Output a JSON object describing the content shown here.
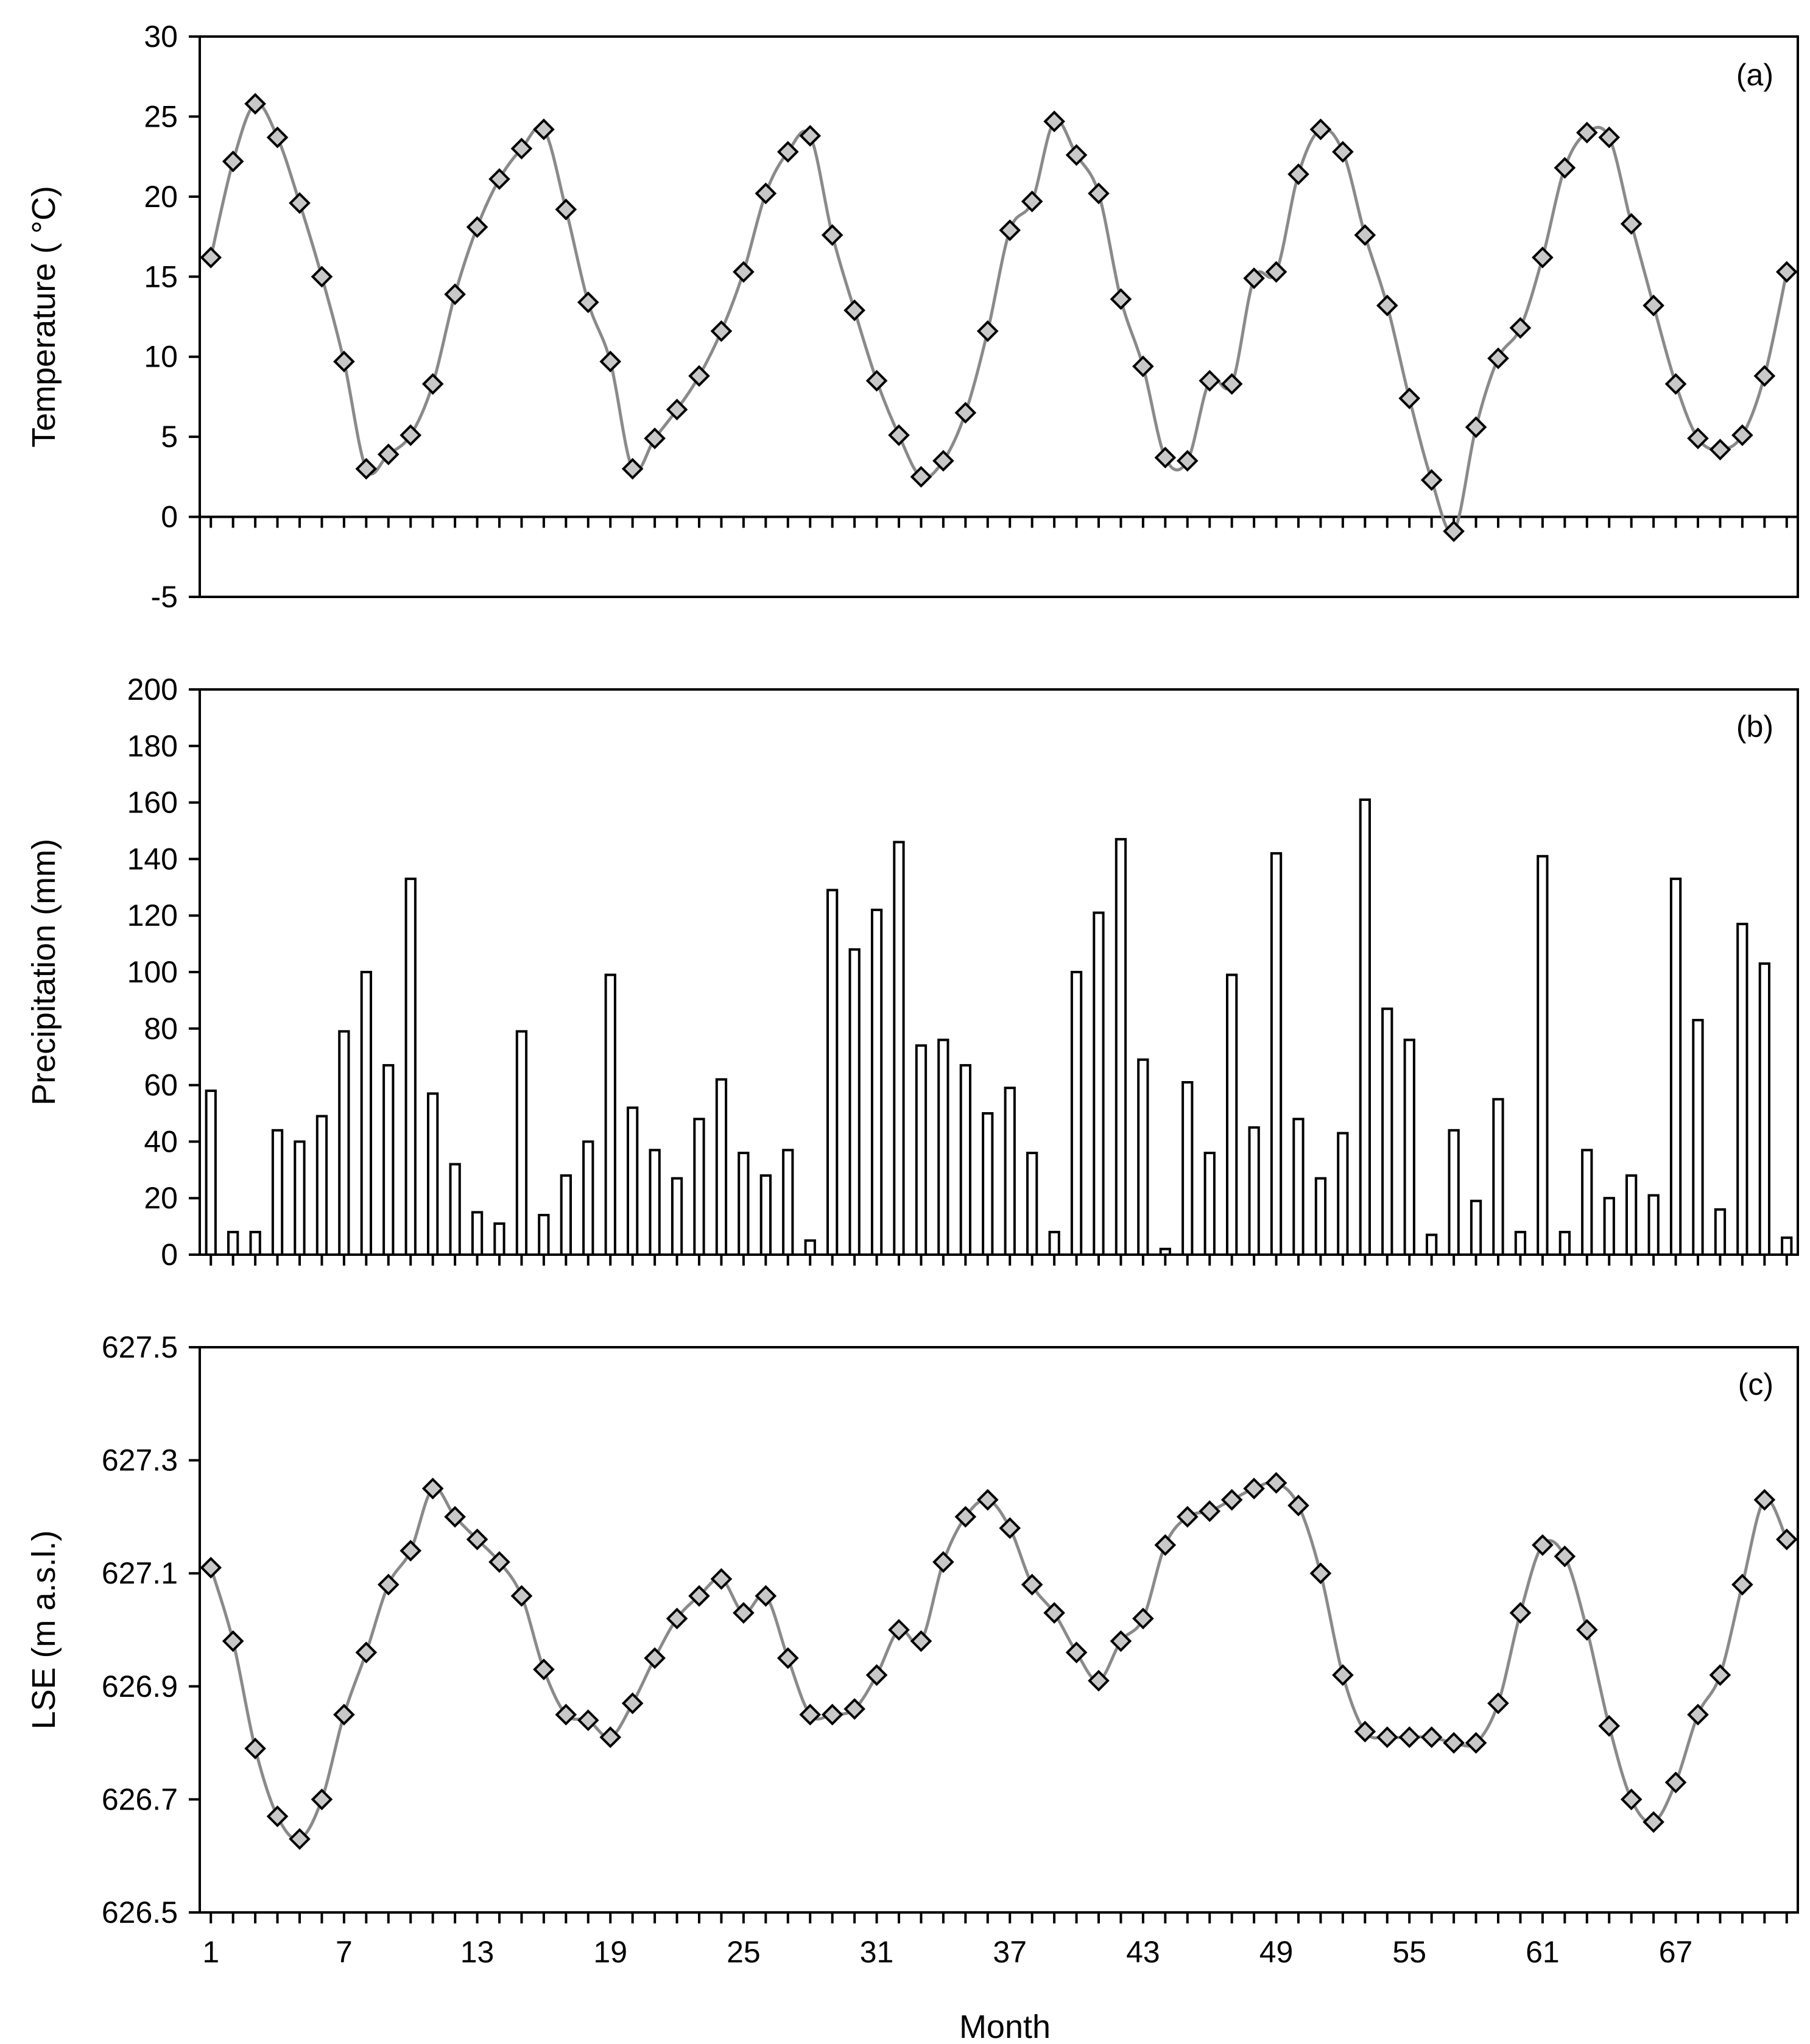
{
  "chart_data": [
    {
      "id": "a",
      "type": "line",
      "panel_label": "(a)",
      "ylabel": "Temperature ( °C)",
      "ylim": [
        -5,
        30
      ],
      "yticks": [
        -5,
        0,
        5,
        10,
        15,
        20,
        25,
        30
      ],
      "xlim": [
        0.5,
        72.5
      ],
      "marker": "diamond",
      "line_color": "#8a8a8a",
      "marker_color": "#c8c8c8",
      "x": [
        1,
        2,
        3,
        4,
        5,
        6,
        7,
        8,
        9,
        10,
        11,
        12,
        13,
        14,
        15,
        16,
        17,
        18,
        19,
        20,
        21,
        22,
        23,
        24,
        25,
        26,
        27,
        28,
        29,
        30,
        31,
        32,
        33,
        34,
        35,
        36,
        37,
        38,
        39,
        40,
        41,
        42,
        43,
        44,
        45,
        46,
        47,
        48,
        49,
        50,
        51,
        52,
        53,
        54,
        55,
        56,
        57,
        58,
        59,
        60,
        61,
        62,
        63,
        64,
        65,
        66,
        67,
        68,
        69,
        70,
        71,
        72
      ],
      "values": [
        16.2,
        22.2,
        25.8,
        23.7,
        19.6,
        15.0,
        9.7,
        3.0,
        3.9,
        5.1,
        8.3,
        13.9,
        18.1,
        21.1,
        23.0,
        24.2,
        19.2,
        13.4,
        9.7,
        3.0,
        4.9,
        6.7,
        8.8,
        11.6,
        15.3,
        20.2,
        22.8,
        23.8,
        17.6,
        12.9,
        8.5,
        5.1,
        2.5,
        3.5,
        6.5,
        11.6,
        17.9,
        19.7,
        24.7,
        22.6,
        20.2,
        13.6,
        9.4,
        3.7,
        3.5,
        8.5,
        8.3,
        14.9,
        15.3,
        21.4,
        24.2,
        22.8,
        17.6,
        13.2,
        7.4,
        2.3,
        -0.9,
        5.6,
        9.9,
        11.8,
        16.2,
        21.8,
        24.0,
        23.7,
        18.3,
        13.2,
        8.3,
        4.9,
        4.2,
        5.1,
        8.8,
        15.3
      ]
    },
    {
      "id": "b",
      "type": "bar",
      "panel_label": "(b)",
      "ylabel": "Precipitation (mm)",
      "ylim": [
        0,
        200
      ],
      "yticks": [
        0,
        20,
        40,
        60,
        80,
        100,
        120,
        140,
        160,
        180,
        200
      ],
      "xlim": [
        0.5,
        72.5
      ],
      "bar_color": "#ffffff",
      "x": [
        1,
        2,
        3,
        4,
        5,
        6,
        7,
        8,
        9,
        10,
        11,
        12,
        13,
        14,
        15,
        16,
        17,
        18,
        19,
        20,
        21,
        22,
        23,
        24,
        25,
        26,
        27,
        28,
        29,
        30,
        31,
        32,
        33,
        34,
        35,
        36,
        37,
        38,
        39,
        40,
        41,
        42,
        43,
        44,
        45,
        46,
        47,
        48,
        49,
        50,
        51,
        52,
        53,
        54,
        55,
        56,
        57,
        58,
        59,
        60,
        61,
        62,
        63,
        64,
        65,
        66,
        67,
        68,
        69,
        70,
        71,
        72
      ],
      "values": [
        58,
        8,
        8,
        44,
        40,
        49,
        79,
        100,
        67,
        133,
        57,
        32,
        15,
        11,
        79,
        14,
        28,
        40,
        99,
        52,
        37,
        27,
        48,
        62,
        36,
        28,
        37,
        5,
        129,
        108,
        122,
        146,
        74,
        76,
        67,
        50,
        59,
        36,
        8,
        100,
        121,
        147,
        69,
        2,
        61,
        36,
        99,
        45,
        142,
        48,
        27,
        43,
        161,
        87,
        76,
        7,
        44,
        19,
        55,
        8,
        141,
        8,
        37,
        20,
        28,
        21,
        133,
        83,
        16,
        117,
        103,
        6
      ]
    },
    {
      "id": "c",
      "type": "line",
      "panel_label": "(c)",
      "ylabel": "LSE (m a.s.l.)",
      "xlabel": "Month",
      "ylim": [
        626.5,
        627.5
      ],
      "yticks": [
        626.5,
        626.7,
        626.9,
        627.1,
        627.3,
        627.5
      ],
      "ytick_labels": [
        "626.5",
        "626.7",
        "626.9",
        "627.1",
        "627.3",
        "627.5"
      ],
      "xlim": [
        0.5,
        72.5
      ],
      "xticks": [
        1,
        7,
        13,
        19,
        25,
        31,
        37,
        43,
        49,
        55,
        61,
        67
      ],
      "xtick_labels": [
        "1",
        "7",
        "13",
        "19",
        "25",
        "31",
        "37",
        "43",
        "49",
        "55",
        "61",
        "67"
      ],
      "marker": "diamond",
      "line_color": "#8a8a8a",
      "marker_color": "#c8c8c8",
      "x": [
        1,
        2,
        3,
        4,
        5,
        6,
        7,
        8,
        9,
        10,
        11,
        12,
        13,
        14,
        15,
        16,
        17,
        18,
        19,
        20,
        21,
        22,
        23,
        24,
        25,
        26,
        27,
        28,
        29,
        30,
        31,
        32,
        33,
        34,
        35,
        36,
        37,
        38,
        39,
        40,
        41,
        42,
        43,
        44,
        45,
        46,
        47,
        48,
        49,
        50,
        51,
        52,
        53,
        54,
        55,
        56,
        57,
        58,
        59,
        60,
        61,
        62,
        63,
        64,
        65,
        66,
        67,
        68,
        69,
        70,
        71,
        72
      ],
      "values": [
        627.11,
        626.98,
        626.79,
        626.67,
        626.63,
        626.7,
        626.85,
        626.96,
        627.08,
        627.14,
        627.25,
        627.2,
        627.16,
        627.12,
        627.06,
        626.93,
        626.85,
        626.84,
        626.81,
        626.87,
        626.95,
        627.02,
        627.06,
        627.09,
        627.03,
        627.06,
        626.95,
        626.85,
        626.85,
        626.86,
        626.92,
        627.0,
        626.98,
        627.12,
        627.2,
        627.23,
        627.18,
        627.08,
        627.03,
        626.96,
        626.91,
        626.98,
        627.02,
        627.15,
        627.2,
        627.21,
        627.23,
        627.25,
        627.26,
        627.22,
        627.1,
        626.92,
        626.82,
        626.81,
        626.81,
        626.81,
        626.8,
        626.8,
        626.87,
        627.03,
        627.15,
        627.13,
        627.0,
        626.83,
        626.7,
        626.66,
        626.73,
        626.85,
        626.92,
        627.08,
        627.23,
        627.16
      ]
    }
  ]
}
